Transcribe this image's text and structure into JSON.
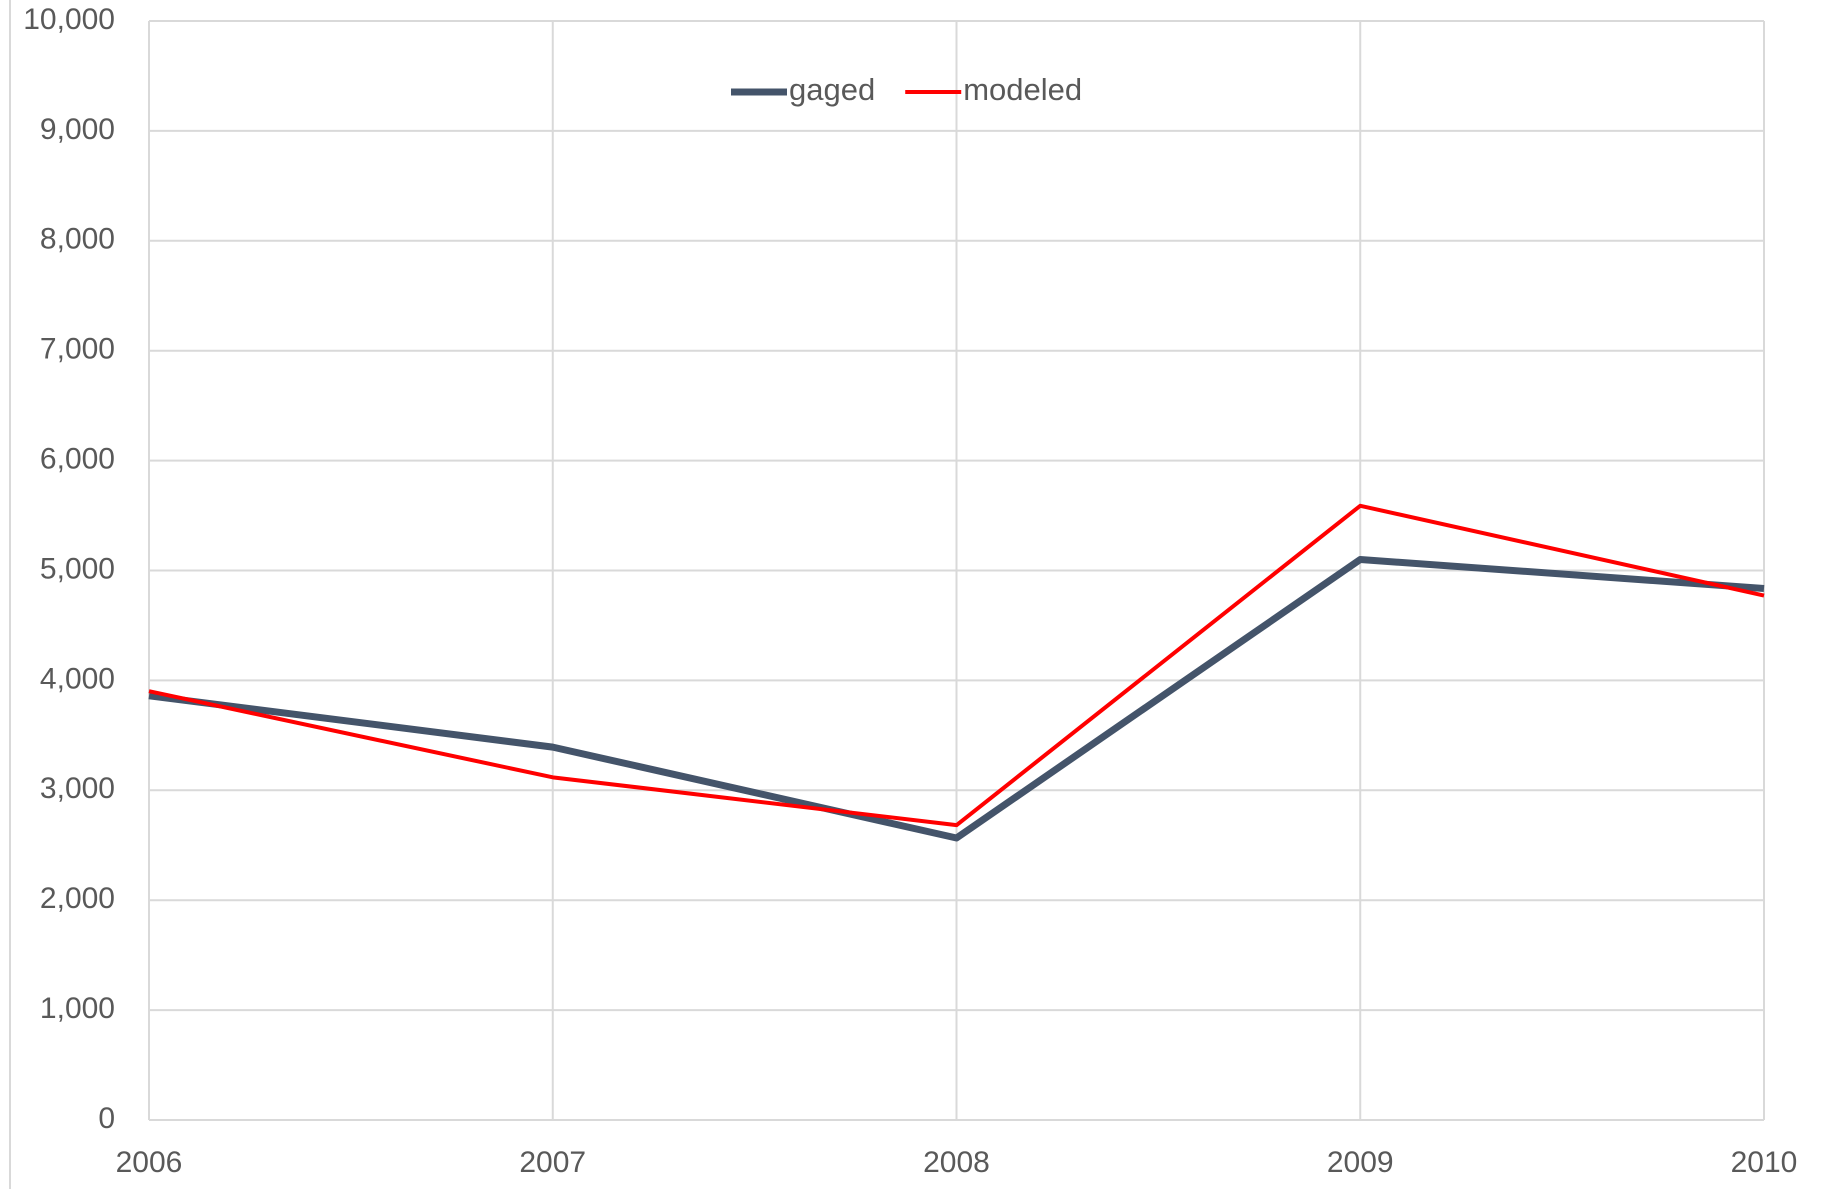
{
  "chart_data": {
    "type": "line",
    "x": [
      2006,
      2007,
      2008,
      2009,
      2010
    ],
    "series": [
      {
        "name": "gaged",
        "color": "#44546a",
        "values": [
          3860,
          3393,
          2566,
          5100,
          4836
        ]
      },
      {
        "name": "modeled",
        "color": "#ff0000",
        "values": [
          3902,
          3118,
          2683,
          5589,
          4772
        ]
      }
    ],
    "xlim": [
      2006,
      2010
    ],
    "xticks": [
      2006,
      2007,
      2008,
      2009,
      2010
    ],
    "ylim": [
      0,
      10000
    ],
    "yticks": [
      0,
      {
        "value": 1000,
        "label": "1,000"
      },
      {
        "value": 2000,
        "label": "2,000"
      },
      {
        "value": 3000,
        "label": "3,000"
      },
      {
        "value": 4000,
        "label": "4,000"
      },
      {
        "value": 5000,
        "label": "5,000"
      },
      {
        "value": 6000,
        "label": "6,000"
      },
      {
        "value": 7000,
        "label": "7,000"
      },
      {
        "value": 8000,
        "label": "8,000"
      },
      {
        "value": 9000,
        "label": "9,000"
      },
      {
        "value": 10000,
        "label": "10,000"
      }
    ],
    "grid": true,
    "legend": "top"
  }
}
